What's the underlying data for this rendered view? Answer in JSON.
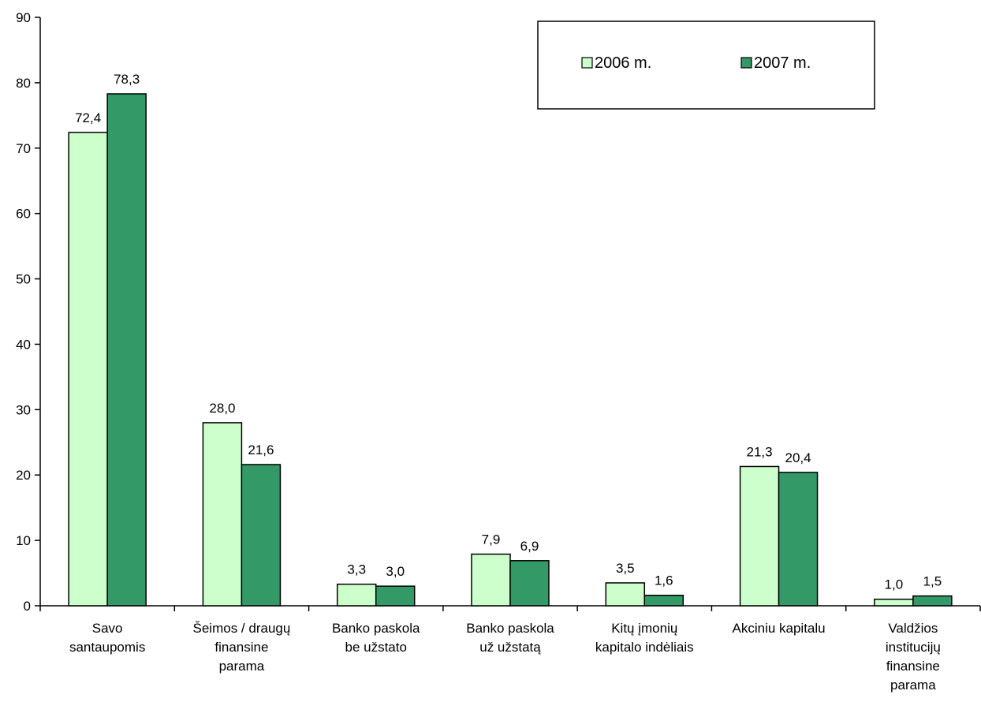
{
  "chart_data": {
    "type": "bar",
    "title": "",
    "xlabel": "",
    "ylabel": "",
    "ylim": [
      0,
      90
    ],
    "yticks": [
      0,
      10,
      20,
      30,
      40,
      50,
      60,
      70,
      80,
      90
    ],
    "grid": false,
    "legend_position": "top-right",
    "decimal_separator": ",",
    "categories": [
      [
        "Savo",
        "santaupomis"
      ],
      [
        "Šeimos / draugų",
        "finansine",
        "parama"
      ],
      [
        "Banko paskola",
        "be užstato"
      ],
      [
        "Banko paskola",
        "už užstatą"
      ],
      [
        "Kitų įmonių",
        "kapitalo indėliais"
      ],
      [
        "Akciniu kapitalu"
      ],
      [
        "Valdžios",
        "institucijų",
        "finansine",
        "parama"
      ]
    ],
    "series": [
      {
        "name": "2006 m.",
        "color": "#ccffcc",
        "values": [
          72.4,
          28.0,
          3.3,
          7.9,
          3.5,
          21.3,
          1.0
        ]
      },
      {
        "name": "2007 m.",
        "color": "#339966",
        "values": [
          78.3,
          21.6,
          3.0,
          6.9,
          1.6,
          20.4,
          1.5
        ]
      }
    ]
  }
}
